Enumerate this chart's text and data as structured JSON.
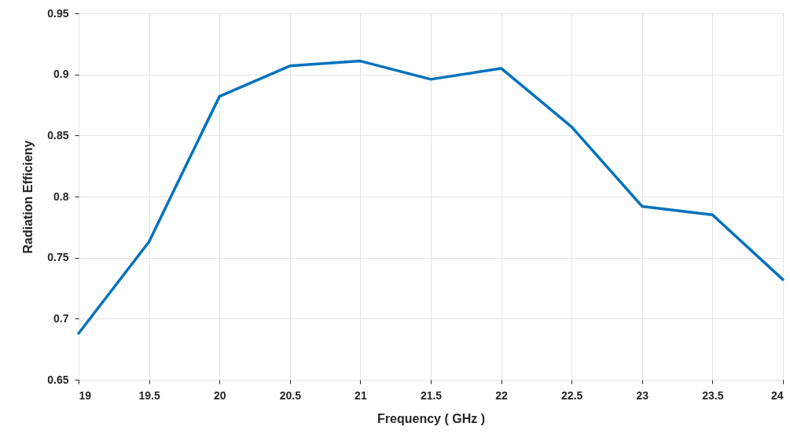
{
  "chart_data": {
    "type": "line",
    "xlabel": "Frequency ( GHz )",
    "ylabel": "Radiation Efficieny",
    "x": [
      19,
      19.5,
      20,
      20.5,
      21,
      21.5,
      22,
      22.5,
      23,
      23.5,
      24
    ],
    "series": [
      {
        "color": "#0072bd",
        "values": [
          0.688,
          0.763,
          0.882,
          0.907,
          0.911,
          0.896,
          0.905,
          0.857,
          0.792,
          0.785,
          0.732
        ]
      }
    ],
    "xlim": [
      19,
      24
    ],
    "xticks": [
      19,
      19.5,
      20,
      20.5,
      21,
      21.5,
      22,
      22.5,
      23,
      23.5,
      24
    ],
    "ylim": [
      0.65,
      0.95
    ],
    "yticks": [
      0.65,
      0.7,
      0.75,
      0.8,
      0.85,
      0.9,
      0.95
    ],
    "grid": true,
    "marker": "none",
    "line_style": "solid"
  }
}
